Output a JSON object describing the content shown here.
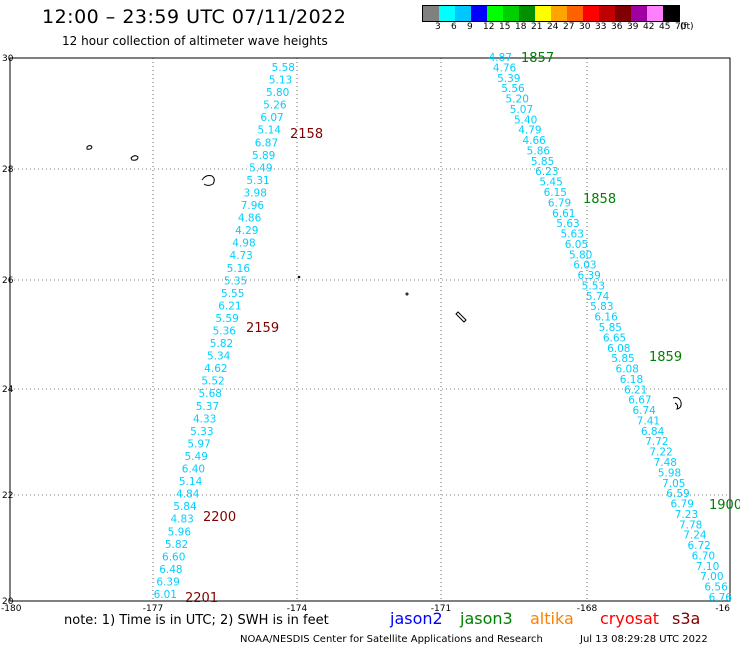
{
  "header": {
    "title": "12:00 – 23:59 UTC 07/11/2022",
    "subtitle": "12 hour collection of altimeter wave heights"
  },
  "colorbar": {
    "swatches": [
      "#808080",
      "#00ffff",
      "#00c8ff",
      "#0000ff",
      "#00ff00",
      "#00d000",
      "#009000",
      "#ffff00",
      "#ffa500",
      "#ff6000",
      "#ff0000",
      "#c00000",
      "#800000",
      "#a000a0",
      "#ff80ff",
      "#000000"
    ],
    "labels": [
      "3",
      "6",
      "9",
      "12",
      "15",
      "18",
      "21",
      "24",
      "27",
      "30",
      "33",
      "36",
      "39",
      "42",
      "45",
      "70",
      "(ft)"
    ]
  },
  "map": {
    "lon_ticks": [
      "-180",
      "-177",
      "-174",
      "-171",
      "-168",
      "-16"
    ],
    "lat_ticks": [
      "30",
      "28",
      "26",
      "24",
      "22",
      "20"
    ],
    "track1_color": "#00d0ff",
    "track1_values": [
      "5.58",
      "5.13",
      "5.80",
      "5.26",
      "6.07",
      "5.14",
      "6.87",
      "5.89",
      "5.49",
      "5.31",
      "3.98",
      "7.96",
      "4.86",
      "4.29",
      "4.98",
      "4.73",
      "5.16",
      "5.35",
      "5.55",
      "6.21",
      "5.59",
      "5.36",
      "5.82",
      "5.34",
      "4.62",
      "5.52",
      "5.68",
      "5.37",
      "4.33",
      "5.33",
      "5.97",
      "5.49",
      "6.40",
      "5.14",
      "4.84",
      "5.84",
      "4.83",
      "5.96",
      "5.82",
      "6.60",
      "6.48",
      "6.39",
      "6.01"
    ],
    "track1_times": [
      {
        "label": "2158",
        "color": "#800000"
      },
      {
        "label": "2159",
        "color": "#800000"
      },
      {
        "label": "2200",
        "color": "#800000"
      },
      {
        "label": "2201",
        "color": "#800000"
      }
    ],
    "track2_color": "#00d0ff",
    "track2_values": [
      "4.87",
      "4.76",
      "5.39",
      "5.56",
      "5.20",
      "5.07",
      "5.40",
      "4.79",
      "4.66",
      "5.86",
      "5.85",
      "6.23",
      "5.45",
      "6.15",
      "6.79",
      "6.61",
      "5.63",
      "5.63",
      "6.05",
      "5.80",
      "6.03",
      "6.39",
      "5.53",
      "5.74",
      "5.83",
      "6.16",
      "5.85",
      "6.65",
      "6.08",
      "5.85",
      "6.08",
      "6.18",
      "6.21",
      "6.67",
      "6.74",
      "7.41",
      "6.84",
      "7.72",
      "7.22",
      "7.48",
      "5.98",
      "7.05",
      "6.59",
      "6.79",
      "7.23",
      "7.78",
      "7.24",
      "6.72",
      "6.70",
      "7.10",
      "7.00",
      "6.56",
      "6.76"
    ],
    "track2_times": [
      {
        "label": "1857",
        "color": "#008000"
      },
      {
        "label": "1858",
        "color": "#008000"
      },
      {
        "label": "1859",
        "color": "#008000"
      },
      {
        "label": "1900",
        "color": "#008000"
      }
    ]
  },
  "footer": {
    "note": "note:  1) Time is in UTC;  2) SWH is in feet",
    "legend": [
      {
        "label": "jason2",
        "color": "#0000ff"
      },
      {
        "label": "jason3",
        "color": "#008000"
      },
      {
        "label": "altika",
        "color": "#ff8000"
      },
      {
        "label": "cryosat",
        "color": "#ff0000"
      },
      {
        "label": "s3a",
        "color": "#800000"
      }
    ],
    "credit": "NOAA/NESDIS Center for Satellite Applications and Research",
    "timestamp": "Jul 13 08:29:28 UTC 2022"
  }
}
